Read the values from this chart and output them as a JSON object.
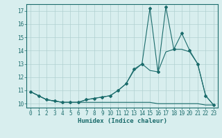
{
  "xlabel": "Humidex (Indice chaleur)",
  "bg_color": "#d8eeee",
  "grid_color": "#b0d0d0",
  "line_color": "#1a6b6b",
  "xlim": [
    -0.5,
    23.5
  ],
  "ylim": [
    9.7,
    17.5
  ],
  "xticks": [
    0,
    1,
    2,
    3,
    4,
    5,
    6,
    7,
    8,
    9,
    10,
    11,
    12,
    13,
    14,
    15,
    16,
    17,
    18,
    19,
    20,
    21,
    22,
    23
  ],
  "yticks": [
    10,
    11,
    12,
    13,
    14,
    15,
    16,
    17
  ],
  "series1_x": [
    0,
    1,
    2,
    3,
    4,
    5,
    6,
    7,
    8,
    9,
    10,
    11,
    12,
    13,
    14,
    15,
    16,
    17,
    18,
    19,
    20,
    21,
    22,
    23
  ],
  "series1_y": [
    10.9,
    10.6,
    10.3,
    10.2,
    10.1,
    10.1,
    10.1,
    10.3,
    10.4,
    10.5,
    10.6,
    11.0,
    11.5,
    12.5,
    13.0,
    12.5,
    12.4,
    13.9,
    14.1,
    14.1,
    13.9,
    13.0,
    10.6,
    9.9
  ],
  "series2_x": [
    0,
    1,
    2,
    3,
    4,
    5,
    6,
    7,
    8,
    9,
    10,
    11,
    12,
    13,
    14,
    15,
    16,
    17,
    18,
    19,
    20,
    21,
    22,
    23
  ],
  "series2_y": [
    10.9,
    10.6,
    10.3,
    10.2,
    10.1,
    10.1,
    10.1,
    10.3,
    10.4,
    10.5,
    10.6,
    11.0,
    11.5,
    12.6,
    13.0,
    17.2,
    12.4,
    17.3,
    14.1,
    15.3,
    14.0,
    13.0,
    10.6,
    9.9
  ],
  "series3_x": [
    0,
    1,
    2,
    3,
    4,
    5,
    6,
    7,
    8,
    9,
    10,
    11,
    12,
    13,
    14,
    15,
    16,
    17,
    18,
    19,
    20,
    21,
    22,
    23
  ],
  "series3_y": [
    10.9,
    10.6,
    10.3,
    10.2,
    10.1,
    10.1,
    10.1,
    10.1,
    10.1,
    10.1,
    10.1,
    10.1,
    10.1,
    10.1,
    10.1,
    10.1,
    10.0,
    10.0,
    10.0,
    10.0,
    10.0,
    10.0,
    9.9,
    9.9
  ]
}
